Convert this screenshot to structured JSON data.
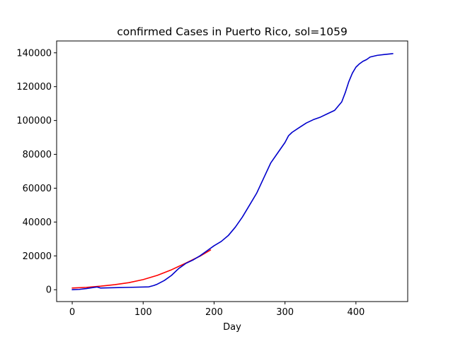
{
  "chart_data": {
    "type": "line",
    "title": "confirmed Cases in Puerto Rico, sol=1059",
    "xlabel": "Day",
    "ylabel": "",
    "xlim": [
      -22,
      473
    ],
    "ylim": [
      -7000,
      147000
    ],
    "xticks": [
      0,
      100,
      200,
      300,
      400
    ],
    "yticks": [
      0,
      20000,
      40000,
      60000,
      80000,
      100000,
      120000,
      140000
    ],
    "grid": false,
    "series": [
      {
        "color": "#ff0000",
        "x": [
          0,
          20,
          40,
          60,
          80,
          100,
          120,
          140,
          160,
          180,
          195
        ],
        "values": [
          1000,
          1400,
          2100,
          3000,
          4200,
          6000,
          8500,
          11800,
          15700,
          19800,
          23500
        ]
      },
      {
        "color": "#0000cc",
        "x": [
          0,
          10,
          20,
          35,
          40,
          60,
          80,
          108,
          115,
          120,
          130,
          140,
          150,
          160,
          170,
          180,
          190,
          200,
          210,
          220,
          230,
          240,
          250,
          260,
          270,
          280,
          290,
          300,
          305,
          310,
          320,
          330,
          340,
          350,
          360,
          370,
          375,
          380,
          385,
          390,
          395,
          400,
          405,
          410,
          415,
          420,
          430,
          440,
          452
        ],
        "values": [
          0,
          200,
          700,
          1600,
          1000,
          1200,
          1400,
          1700,
          2500,
          3300,
          5500,
          8500,
          12500,
          15500,
          17500,
          20000,
          23000,
          26000,
          28500,
          32000,
          37000,
          43000,
          50000,
          57000,
          66000,
          75000,
          81000,
          87000,
          91000,
          93000,
          95800,
          98500,
          100500,
          102000,
          104000,
          106000,
          108500,
          111000,
          116500,
          123000,
          128000,
          131500,
          133500,
          135000,
          136000,
          137500,
          138500,
          139000,
          139500
        ]
      }
    ]
  }
}
